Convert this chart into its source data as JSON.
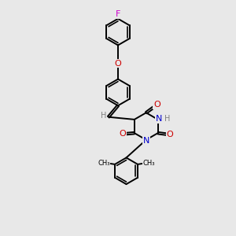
{
  "background_color": "#e8e8e8",
  "fig_size": [
    3.0,
    3.0
  ],
  "dpi": 100,
  "atom_colors": {
    "C": "#000000",
    "N": "#0000cd",
    "O": "#cc0000",
    "F": "#cc00cc",
    "H": "#808080"
  },
  "bond_color": "#000000",
  "bond_width": 1.4,
  "font_size": 7.5
}
